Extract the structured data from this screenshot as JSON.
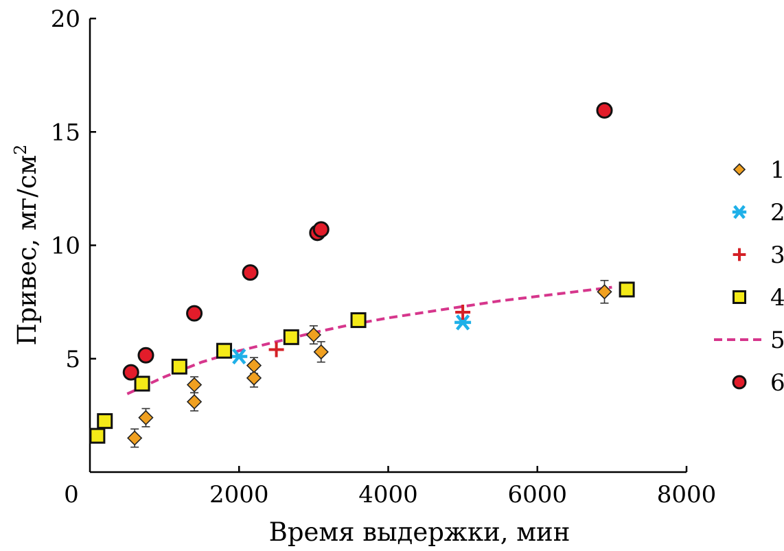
{
  "chart_data": {
    "type": "scatter",
    "title": "",
    "xlabel": "Время выдержки, мин",
    "ylabel": "Привес, мг/см",
    "ylabel_superscript": "2",
    "xlim": [
      0,
      8000
    ],
    "ylim": [
      0,
      20
    ],
    "xticks": [
      0,
      2000,
      4000,
      6000,
      8000
    ],
    "yticks": [
      5,
      10,
      15,
      20
    ],
    "grid": false,
    "legend_position": "right",
    "colors": {
      "s1": "#f0a020",
      "s2": "#1fb0e8",
      "s3": "#d42026",
      "s4": "#f4ea18",
      "s5": "#d6368c",
      "s6": "#e21c2a"
    },
    "series": [
      {
        "name": "1",
        "marker": "diamond",
        "color": "#f0a020",
        "points": [
          {
            "x": 600,
            "y": 1.5,
            "err": 0.4
          },
          {
            "x": 750,
            "y": 2.4,
            "err": 0.4
          },
          {
            "x": 1400,
            "y": 3.1,
            "err": 0.4
          },
          {
            "x": 1400,
            "y": 3.85,
            "err": 0.35
          },
          {
            "x": 2200,
            "y": 4.15,
            "err": 0.4
          },
          {
            "x": 2200,
            "y": 4.7,
            "err": 0.35
          },
          {
            "x": 3000,
            "y": 6.05,
            "err": 0.4
          },
          {
            "x": 3100,
            "y": 5.3,
            "err": 0.45
          },
          {
            "x": 6900,
            "y": 7.95,
            "err": 0.5
          }
        ]
      },
      {
        "name": "2",
        "marker": "asterisk",
        "color": "#1fb0e8",
        "points": [
          {
            "x": 2000,
            "y": 5.1
          },
          {
            "x": 5000,
            "y": 6.6
          }
        ]
      },
      {
        "name": "3",
        "marker": "plus",
        "color": "#d42026",
        "points": [
          {
            "x": 2500,
            "y": 5.4
          },
          {
            "x": 5000,
            "y": 7.05
          }
        ]
      },
      {
        "name": "4",
        "marker": "square",
        "color": "#f4ea18",
        "points": [
          {
            "x": 100,
            "y": 1.6
          },
          {
            "x": 200,
            "y": 2.25
          },
          {
            "x": 700,
            "y": 3.9
          },
          {
            "x": 1200,
            "y": 4.65
          },
          {
            "x": 1800,
            "y": 5.35
          },
          {
            "x": 2700,
            "y": 5.95
          },
          {
            "x": 3600,
            "y": 6.7
          },
          {
            "x": 7200,
            "y": 8.05
          }
        ]
      },
      {
        "name": "5",
        "marker": "dashed-line",
        "color": "#d6368c",
        "points": [
          {
            "x": 500,
            "y": 3.45
          },
          {
            "x": 1000,
            "y": 4.2
          },
          {
            "x": 1500,
            "y": 4.85
          },
          {
            "x": 2000,
            "y": 5.35
          },
          {
            "x": 2500,
            "y": 5.75
          },
          {
            "x": 3000,
            "y": 6.15
          },
          {
            "x": 3500,
            "y": 6.5
          },
          {
            "x": 4000,
            "y": 6.8
          },
          {
            "x": 4500,
            "y": 7.05
          },
          {
            "x": 5000,
            "y": 7.3
          },
          {
            "x": 5500,
            "y": 7.55
          },
          {
            "x": 6000,
            "y": 7.75
          },
          {
            "x": 6500,
            "y": 7.95
          },
          {
            "x": 7000,
            "y": 8.15
          }
        ]
      },
      {
        "name": "6",
        "marker": "circle",
        "color": "#e21c2a",
        "points": [
          {
            "x": 550,
            "y": 4.4
          },
          {
            "x": 750,
            "y": 5.15
          },
          {
            "x": 1400,
            "y": 7.0
          },
          {
            "x": 2150,
            "y": 8.8
          },
          {
            "x": 3050,
            "y": 10.55
          },
          {
            "x": 3100,
            "y": 10.7
          },
          {
            "x": 6900,
            "y": 15.95
          }
        ]
      }
    ]
  }
}
